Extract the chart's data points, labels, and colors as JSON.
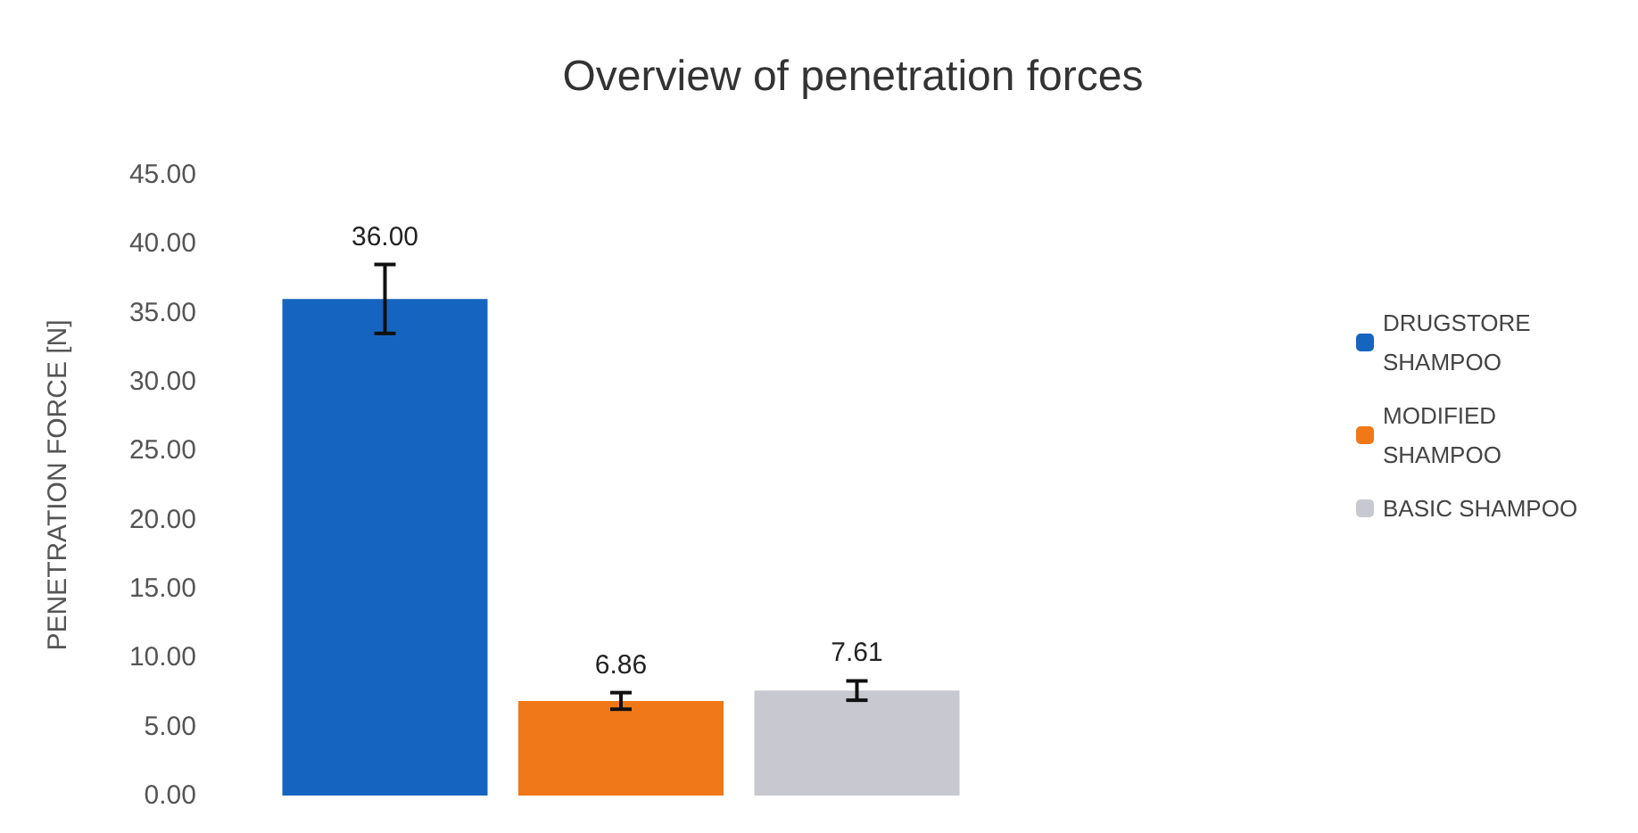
{
  "chart_data": {
    "type": "bar",
    "title": "Overview of penetration forces",
    "ylabel": "PENETRATION FORCE [N]",
    "categories": [
      null
    ],
    "series": [
      {
        "name": "DRUGSTORE SHAMPOO",
        "color": "#1565c0",
        "values": [
          36.0
        ],
        "errors": [
          2.5
        ],
        "value_labels": [
          "36.00"
        ]
      },
      {
        "name": "MODIFIED SHAMPOO",
        "color": "#f07818",
        "values": [
          6.86
        ],
        "errors": [
          0.6
        ],
        "value_labels": [
          "6.86"
        ]
      },
      {
        "name": "BASIC SHAMPOO",
        "color": "#c8c8d0",
        "values": [
          7.61
        ],
        "errors": [
          0.7
        ],
        "value_labels": [
          "7.61"
        ]
      }
    ],
    "ylim": [
      0,
      45
    ],
    "yticks": [
      {
        "value": 0,
        "label": "0.00"
      },
      {
        "value": 5,
        "label": "5.00"
      },
      {
        "value": 10,
        "label": "10.00"
      },
      {
        "value": 15,
        "label": "15.00"
      },
      {
        "value": 20,
        "label": "20.00"
      },
      {
        "value": 25,
        "label": "25.00"
      },
      {
        "value": 30,
        "label": "30.00"
      },
      {
        "value": 35,
        "label": "35.00"
      },
      {
        "value": 40,
        "label": "40.00"
      },
      {
        "value": 45,
        "label": "45.00"
      }
    ],
    "grid": false,
    "legend": "right"
  }
}
